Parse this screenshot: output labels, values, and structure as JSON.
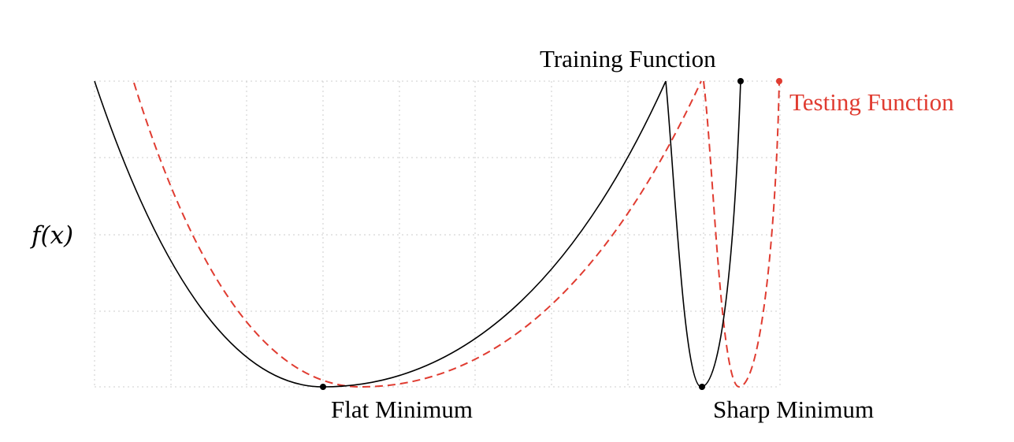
{
  "diagram": {
    "y_label": "f(x)",
    "training_label": "Training Function",
    "testing_label": "Testing Function",
    "flat_min_label": "Flat Minimum",
    "sharp_min_label": "Sharp Minimum"
  },
  "colors": {
    "training": "#000000",
    "testing": "#e03c31",
    "grid": "#cccccc"
  },
  "grid": true
}
